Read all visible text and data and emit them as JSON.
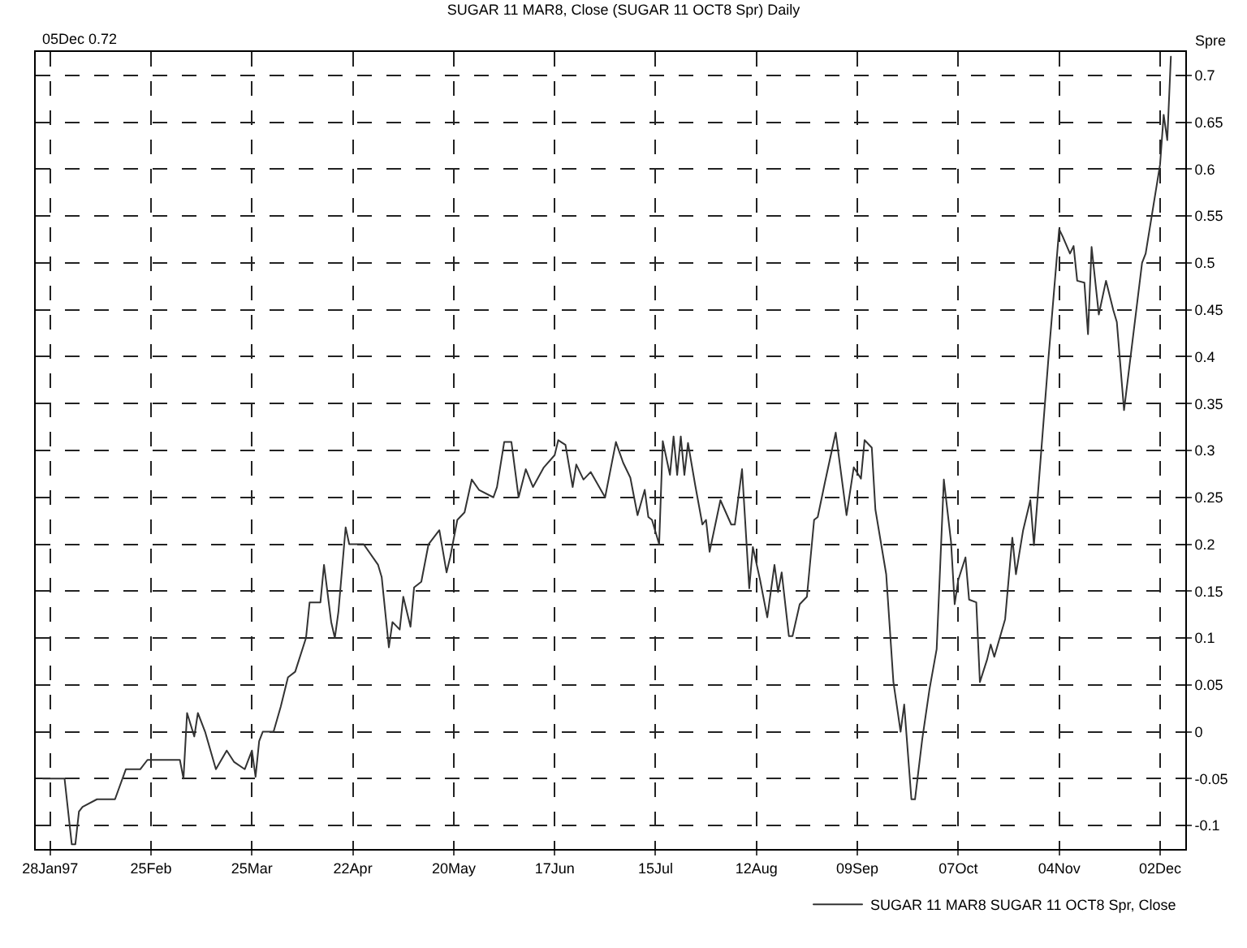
{
  "chart_data": {
    "type": "line",
    "title": "SUGAR 11 MAR8, Close (SUGAR 11 OCT8 Spr) Daily",
    "ylabel": "Spre",
    "annotations": [
      "05Dec 0.72"
    ],
    "xlim": [
      "1997-01-24",
      "1997-12-09"
    ],
    "ylim": [
      -0.125,
      0.725
    ],
    "xticks": [
      {
        "value": "1997-01-28",
        "label": "28Jan97"
      },
      {
        "value": "1997-02-25",
        "label": "25Feb"
      },
      {
        "value": "1997-03-25",
        "label": "25Mar"
      },
      {
        "value": "1997-04-22",
        "label": "22Apr"
      },
      {
        "value": "1997-05-20",
        "label": "20May"
      },
      {
        "value": "1997-06-17",
        "label": "17Jun"
      },
      {
        "value": "1997-07-15",
        "label": "15Jul"
      },
      {
        "value": "1997-08-12",
        "label": "12Aug"
      },
      {
        "value": "1997-09-09",
        "label": "09Sep"
      },
      {
        "value": "1997-10-07",
        "label": "07Oct"
      },
      {
        "value": "1997-11-04",
        "label": "04Nov"
      },
      {
        "value": "1997-12-02",
        "label": "02Dec"
      }
    ],
    "yticks": [
      0.7,
      0.65,
      0.6,
      0.55,
      0.5,
      0.45,
      0.4,
      0.35,
      0.3,
      0.25,
      0.2,
      0.15,
      0.1,
      0.05,
      0,
      -0.05,
      -0.1
    ],
    "grid": true,
    "legend": "bottom right",
    "marker": "none",
    "line_style": "solid",
    "x": [
      "1997-01-26",
      "1997-02-01",
      "1997-02-03",
      "1997-02-04",
      "1997-02-05",
      "1997-02-06",
      "1997-02-10",
      "1997-02-15",
      "1997-02-18",
      "1997-02-22",
      "1997-02-24",
      "1997-03-05",
      "1997-03-06",
      "1997-03-07",
      "1997-03-09",
      "1997-03-10",
      "1997-03-12",
      "1997-03-15",
      "1997-03-18",
      "1997-03-20",
      "1997-03-23",
      "1997-03-25",
      "1997-03-26",
      "1997-03-27",
      "1997-03-28",
      "1997-03-31",
      "1997-04-02",
      "1997-04-04",
      "1997-04-06",
      "1997-04-09",
      "1997-04-10",
      "1997-04-13",
      "1997-04-14",
      "1997-04-16",
      "1997-04-17",
      "1997-04-18",
      "1997-04-20",
      "1997-04-21",
      "1997-04-25",
      "1997-04-29",
      "1997-04-30",
      "1997-05-02",
      "1997-05-03",
      "1997-05-05",
      "1997-05-06",
      "1997-05-08",
      "1997-05-09",
      "1997-05-11",
      "1997-05-13",
      "1997-05-16",
      "1997-05-18",
      "1997-05-19",
      "1997-05-21",
      "1997-05-23",
      "1997-05-25",
      "1997-05-27",
      "1997-05-31",
      "1997-06-01",
      "1997-06-03",
      "1997-06-05",
      "1997-06-07",
      "1997-06-09",
      "1997-06-11",
      "1997-06-14",
      "1997-06-17",
      "1997-06-18",
      "1997-06-20",
      "1997-06-22",
      "1997-06-23",
      "1997-06-25",
      "1997-06-27",
      "1997-07-01",
      "1997-07-04",
      "1997-07-06",
      "1997-07-08",
      "1997-07-10",
      "1997-07-12",
      "1997-07-13",
      "1997-07-14",
      "1997-07-16",
      "1997-07-17",
      "1997-07-19",
      "1997-07-20",
      "1997-07-21",
      "1997-07-22",
      "1997-07-23",
      "1997-07-24",
      "1997-07-26",
      "1997-07-28",
      "1997-07-29",
      "1997-07-30",
      "1997-08-02",
      "1997-08-05",
      "1997-08-06",
      "1997-08-08",
      "1997-08-10",
      "1997-08-11",
      "1997-08-13",
      "1997-08-15",
      "1997-08-17",
      "1997-08-18",
      "1997-08-19",
      "1997-08-21",
      "1997-08-22",
      "1997-08-24",
      "1997-08-26",
      "1997-08-28",
      "1997-08-29",
      "1997-08-31",
      "1997-09-03",
      "1997-09-06",
      "1997-09-08",
      "1997-09-10",
      "1997-09-11",
      "1997-09-13",
      "1997-09-14",
      "1997-09-17",
      "1997-09-19",
      "1997-09-21",
      "1997-09-22",
      "1997-09-24",
      "1997-09-25",
      "1997-09-27",
      "1997-09-29",
      "1997-10-01",
      "1997-10-03",
      "1997-10-05",
      "1997-10-06",
      "1997-10-07",
      "1997-10-09",
      "1997-10-10",
      "1997-10-12",
      "1997-10-13",
      "1997-10-15",
      "1997-10-16",
      "1997-10-17",
      "1997-10-20",
      "1997-10-22",
      "1997-10-23",
      "1997-10-25",
      "1997-10-27",
      "1997-10-28",
      "1997-11-01",
      "1997-11-04",
      "1997-11-05",
      "1997-11-07",
      "1997-11-08",
      "1997-11-09",
      "1997-11-11",
      "1997-11-12",
      "1997-11-13",
      "1997-11-15",
      "1997-11-17",
      "1997-11-19",
      "1997-11-20",
      "1997-11-22",
      "1997-11-27",
      "1997-11-28",
      "1997-12-02",
      "1997-12-03",
      "1997-12-04",
      "1997-12-05"
    ],
    "series": [
      {
        "name": "SUGAR 11 MAR8 SUGAR 11 OCT8 Spr, Close",
        "color": "#333333",
        "values": [
          -0.05,
          -0.05,
          -0.12,
          -0.12,
          -0.085,
          -0.08,
          -0.072,
          -0.072,
          -0.04,
          -0.04,
          -0.03,
          -0.03,
          -0.05,
          0.02,
          -0.005,
          0.02,
          0,
          -0.04,
          -0.02,
          -0.032,
          -0.04,
          -0.02,
          -0.048,
          -0.01,
          0,
          0,
          0.027,
          0.058,
          0.064,
          0.1,
          0.138,
          0.138,
          0.178,
          0.117,
          0.1,
          0.128,
          0.218,
          0.2,
          0.2,
          0.178,
          0.165,
          0.09,
          0.117,
          0.109,
          0.144,
          0.112,
          0.154,
          0.16,
          0.2,
          0.215,
          0.17,
          0.186,
          0.226,
          0.234,
          0.269,
          0.258,
          0.25,
          0.261,
          0.309,
          0.309,
          0.25,
          0.28,
          0.261,
          0.282,
          0.295,
          0.311,
          0.306,
          0.261,
          0.285,
          0.269,
          0.277,
          0.25,
          0.309,
          0.287,
          0.271,
          0.231,
          0.258,
          0.229,
          0.226,
          0.2,
          0.31,
          0.274,
          0.315,
          0.274,
          0.315,
          0.274,
          0.308,
          0.263,
          0.221,
          0.226,
          0.192,
          0.247,
          0.221,
          0.221,
          0.28,
          0.153,
          0.197,
          0.162,
          0.122,
          0.178,
          0.149,
          0.17,
          0.102,
          0.102,
          0.136,
          0.144,
          0.226,
          0.229,
          0.266,
          0.319,
          0.231,
          0.282,
          0.27,
          0.311,
          0.303,
          0.237,
          0.168,
          0.053,
          0,
          0.029,
          -0.072,
          -0.072,
          -0.008,
          0.045,
          0.088,
          0.269,
          0.202,
          0.136,
          0.162,
          0.186,
          0.141,
          0.138,
          0.053,
          0.077,
          0.093,
          0.08,
          0.12,
          0.207,
          0.168,
          0.215,
          0.247,
          0.199,
          0.397,
          0.536,
          0.528,
          0.51,
          0.518,
          0.481,
          0.479,
          0.424,
          0.517,
          0.445,
          0.481,
          0.45,
          0.437,
          0.343,
          0.5,
          0.51,
          0.605,
          0.658,
          0.631,
          0.72
        ]
      }
    ]
  }
}
